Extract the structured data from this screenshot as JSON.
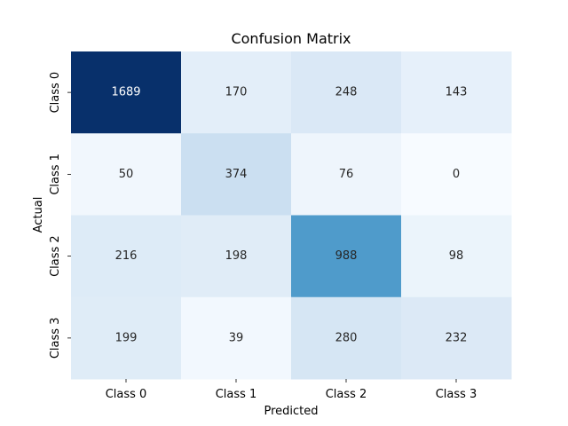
{
  "chart_data": {
    "type": "heatmap",
    "title": "Confusion Matrix",
    "xlabel": "Predicted",
    "ylabel": "Actual",
    "x_categories": [
      "Class 0",
      "Class 1",
      "Class 2",
      "Class 3"
    ],
    "y_categories": [
      "Class 0",
      "Class 1",
      "Class 2",
      "Class 3"
    ],
    "values": [
      [
        1689,
        170,
        248,
        143
      ],
      [
        50,
        374,
        76,
        0
      ],
      [
        216,
        198,
        988,
        98
      ],
      [
        199,
        39,
        280,
        232
      ]
    ],
    "colormap": "Blues",
    "vmin": 0,
    "vmax": 1689,
    "grid": false,
    "colorbar": false
  }
}
